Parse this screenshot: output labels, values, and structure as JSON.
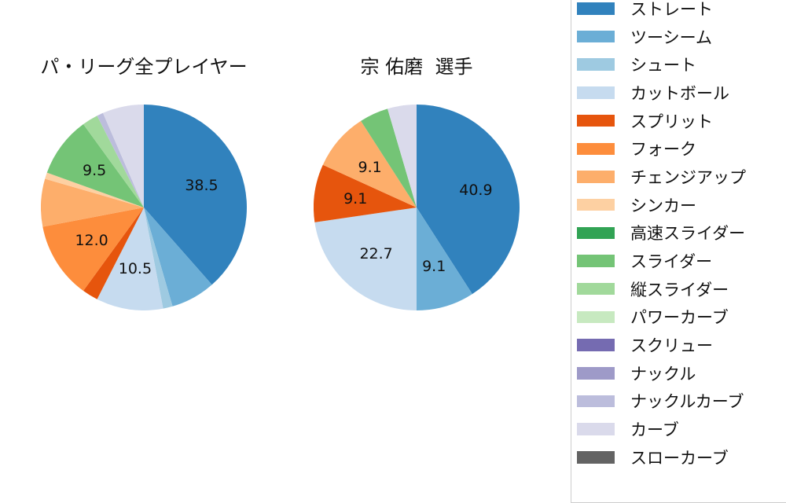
{
  "page": {
    "background": "#ffffff",
    "text_color": "#111111",
    "legend_border_color": "#cdcdcd"
  },
  "chart_data": [
    {
      "type": "pie",
      "title": "パ・リーグ全プレイヤー",
      "unit": "percent",
      "start_angle": "12-oclock",
      "direction": "clockwise",
      "label_distance": 0.6,
      "slices": [
        {
          "name": "ストレート",
          "value": 38.5,
          "label": "38.5",
          "color": "#3182bd"
        },
        {
          "name": "ツーシーム",
          "value": 7.0,
          "label": null,
          "color": "#6baed6"
        },
        {
          "name": "シュート",
          "value": 1.5,
          "label": null,
          "color": "#9ecae1"
        },
        {
          "name": "カットボール",
          "value": 10.5,
          "label": "10.5",
          "color": "#c6dbef"
        },
        {
          "name": "スプリット",
          "value": 2.5,
          "label": null,
          "color": "#e6550d"
        },
        {
          "name": "フォーク",
          "value": 12.0,
          "label": "12.0",
          "color": "#fd8d3c"
        },
        {
          "name": "チェンジアップ",
          "value": 7.5,
          "label": null,
          "color": "#fdae6b"
        },
        {
          "name": "シンカー",
          "value": 1.0,
          "label": null,
          "color": "#fdd0a2"
        },
        {
          "name": "スライダー",
          "value": 9.5,
          "label": "9.5",
          "color": "#74c476"
        },
        {
          "name": "縦スライダー",
          "value": 2.5,
          "label": null,
          "color": "#a1d99b"
        },
        {
          "name": "ナックルカーブ",
          "value": 1.0,
          "label": null,
          "color": "#bcbddc"
        },
        {
          "name": "カーブ",
          "value": 6.5,
          "label": null,
          "color": "#dadaeb"
        }
      ]
    },
    {
      "type": "pie",
      "title": "宗 佑磨  選手",
      "unit": "percent",
      "start_angle": "12-oclock",
      "direction": "clockwise",
      "label_distance": 0.6,
      "slices": [
        {
          "name": "ストレート",
          "value": 40.9,
          "label": "40.9",
          "color": "#3182bd"
        },
        {
          "name": "ツーシーム",
          "value": 9.1,
          "label": "9.1",
          "color": "#6baed6"
        },
        {
          "name": "カットボール",
          "value": 22.7,
          "label": "22.7",
          "color": "#c6dbef"
        },
        {
          "name": "スプリット",
          "value": 9.1,
          "label": "9.1",
          "color": "#e6550d"
        },
        {
          "name": "チェンジアップ",
          "value": 9.1,
          "label": "9.1",
          "color": "#fdae6b"
        },
        {
          "name": "スライダー",
          "value": 4.55,
          "label": null,
          "color": "#74c476"
        },
        {
          "name": "カーブ",
          "value": 4.55,
          "label": null,
          "color": "#dadaeb"
        }
      ]
    }
  ],
  "legend": {
    "items": [
      {
        "label": "ストレート",
        "color": "#3182bd"
      },
      {
        "label": "ツーシーム",
        "color": "#6baed6"
      },
      {
        "label": "シュート",
        "color": "#9ecae1"
      },
      {
        "label": "カットボール",
        "color": "#c6dbef"
      },
      {
        "label": "スプリット",
        "color": "#e6550d"
      },
      {
        "label": "フォーク",
        "color": "#fd8d3c"
      },
      {
        "label": "チェンジアップ",
        "color": "#fdae6b"
      },
      {
        "label": "シンカー",
        "color": "#fdd0a2"
      },
      {
        "label": "高速スライダー",
        "color": "#31a354"
      },
      {
        "label": "スライダー",
        "color": "#74c476"
      },
      {
        "label": "縦スライダー",
        "color": "#a1d99b"
      },
      {
        "label": "パワーカーブ",
        "color": "#c7e9c0"
      },
      {
        "label": "スクリュー",
        "color": "#756bb1"
      },
      {
        "label": "ナックル",
        "color": "#9e9ac8"
      },
      {
        "label": "ナックルカーブ",
        "color": "#bcbddc"
      },
      {
        "label": "カーブ",
        "color": "#dadaeb"
      },
      {
        "label": "スローカーブ",
        "color": "#636363"
      }
    ]
  }
}
